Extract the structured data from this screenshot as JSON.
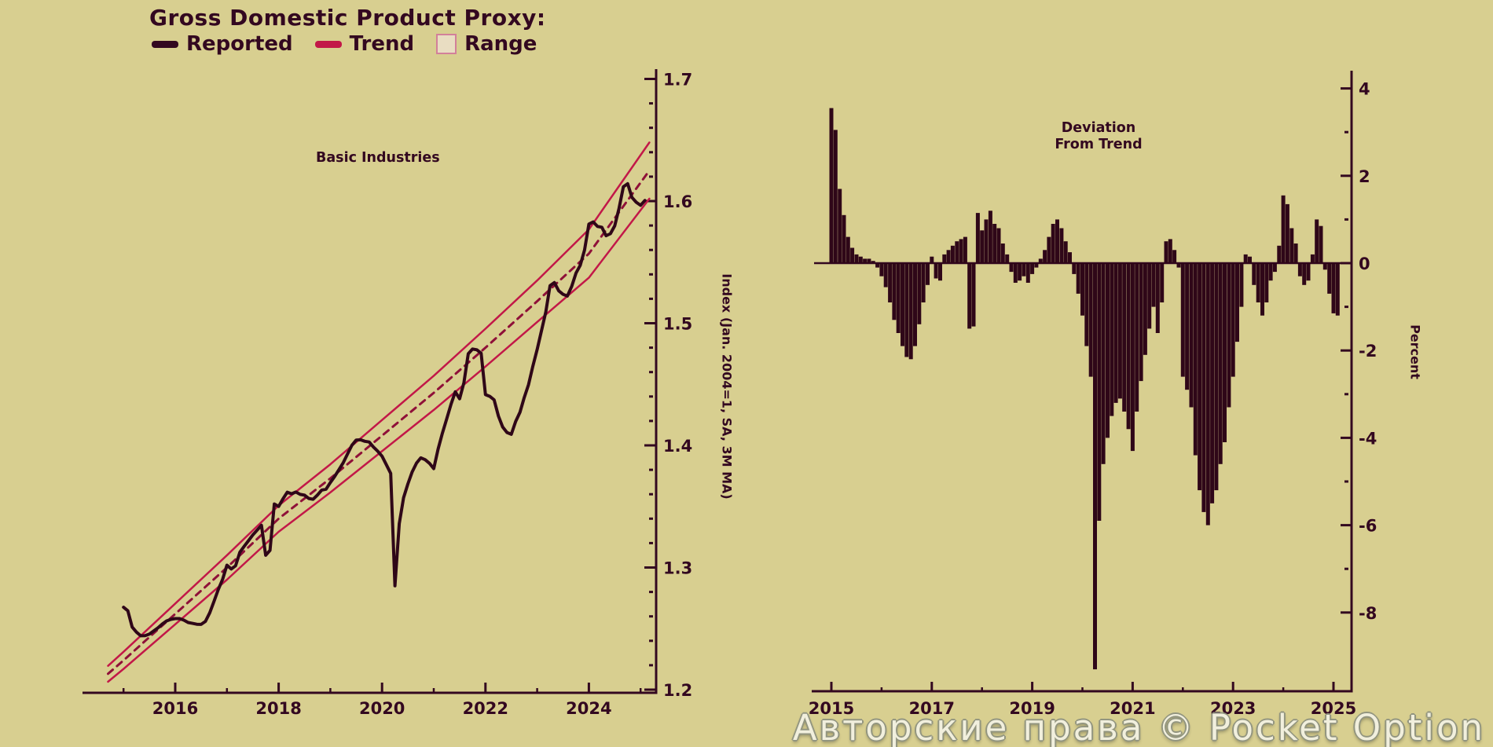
{
  "title": "Gross Domestic Product Proxy:",
  "legend": {
    "reported": "Reported",
    "trend": "Trend",
    "range": "Range"
  },
  "watermark": "Авторские права © Pocket Option",
  "colors": {
    "background": "#d8cf90",
    "ink": "#330820",
    "reported_line": "#2f0718",
    "trend_line": "#8f1038",
    "range_line": "#c21848",
    "range_fill": "#e9ddc2",
    "range_border": "#d2809a",
    "bar": "#2f0718",
    "watermark_fill": "#f3f1e2",
    "watermark_outline": "#8f927f"
  },
  "chart_data": [
    {
      "type": "line",
      "title": "Basic Industries",
      "ylabel": "Index (Jan. 2004=1, SA, 3M MA)",
      "ylim": [
        1.2,
        1.7
      ],
      "x_range": [
        2014.6,
        2025.35
      ],
      "grid": false,
      "y_ticks": [
        {
          "v": 1.7,
          "label": "1.7"
        },
        {
          "v": 1.6,
          "label": "1.6"
        },
        {
          "v": 1.5,
          "label": "1.5"
        },
        {
          "v": 1.4,
          "label": "1.4"
        },
        {
          "v": 1.3,
          "label": "1.3"
        },
        {
          "v": 1.2,
          "label": "1.2"
        }
      ],
      "x_ticks": [
        {
          "v": 2016,
          "label": "2016"
        },
        {
          "v": 2018,
          "label": "2018"
        },
        {
          "v": 2020,
          "label": "2020"
        },
        {
          "v": 2022,
          "label": "2022"
        },
        {
          "v": 2024,
          "label": "2024"
        }
      ],
      "x_minor_ticks": [
        2015,
        2017,
        2019,
        2021,
        2023,
        2025
      ],
      "series": [
        {
          "name": "Reported",
          "derivation": "trend_value * (1 + deviation_percent/100), monthly from Jan 2015 using right chart deviations"
        },
        {
          "name": "Trend",
          "style": "dashed",
          "anchors": [
            [
              2014.7,
              1.213
            ],
            [
              2015,
              1.224
            ],
            [
              2016,
              1.262
            ],
            [
              2017,
              1.3
            ],
            [
              2018,
              1.34
            ],
            [
              2019,
              1.373
            ],
            [
              2020,
              1.408
            ],
            [
              2021,
              1.443
            ],
            [
              2022,
              1.48
            ],
            [
              2023,
              1.518
            ],
            [
              2024,
              1.557
            ],
            [
              2025.17,
              1.625
            ]
          ]
        },
        {
          "name": "Range",
          "style": "band around trend",
          "halfwidth_anchors": [
            [
              2014.7,
              0.0065
            ],
            [
              2015,
              0.007
            ],
            [
              2017,
              0.01
            ],
            [
              2019,
              0.0115
            ],
            [
              2021,
              0.014
            ],
            [
              2023,
              0.017
            ],
            [
              2025.17,
              0.023
            ]
          ]
        }
      ]
    },
    {
      "type": "bar",
      "title": "Deviation From Trend",
      "title_lines": [
        "Deviation",
        "From Trend"
      ],
      "ylabel": "Percent",
      "ylim": [
        -9.75,
        4.4
      ],
      "x_range": [
        2014.6,
        2025.35
      ],
      "grid": false,
      "y_ticks": [
        {
          "v": 4,
          "label": "4"
        },
        {
          "v": 2,
          "label": "2"
        },
        {
          "v": 0,
          "label": "0"
        },
        {
          "v": -2,
          "label": "-2"
        },
        {
          "v": -4,
          "label": "-4"
        },
        {
          "v": -6,
          "label": "-6"
        },
        {
          "v": -8,
          "label": "-8"
        }
      ],
      "y_minor_ticks": [
        3,
        1,
        -1,
        -3,
        -5,
        -7
      ],
      "x_ticks": [
        {
          "v": 2015,
          "label": "2015"
        },
        {
          "v": 2017,
          "label": "2017"
        },
        {
          "v": 2019,
          "label": "2019"
        },
        {
          "v": 2021,
          "label": "2021"
        },
        {
          "v": 2023,
          "label": "2023"
        },
        {
          "v": 2025,
          "label": "2025"
        }
      ],
      "x_minor_ticks": [
        2016,
        2018,
        2020,
        2022,
        2024
      ],
      "start_year": 2015,
      "frequency": "monthly",
      "values": [
        3.55,
        3.05,
        1.7,
        1.1,
        0.6,
        0.35,
        0.2,
        0.15,
        0.1,
        0.1,
        0.05,
        -0.1,
        -0.3,
        -0.55,
        -0.9,
        -1.3,
        -1.6,
        -1.9,
        -2.15,
        -2.2,
        -1.9,
        -1.4,
        -0.9,
        -0.5,
        0.15,
        -0.35,
        -0.4,
        0.2,
        0.3,
        0.4,
        0.5,
        0.55,
        0.6,
        -1.5,
        -1.45,
        1.15,
        0.75,
        1.0,
        1.2,
        0.9,
        0.8,
        0.45,
        0.2,
        -0.2,
        -0.45,
        -0.4,
        -0.3,
        -0.45,
        -0.25,
        -0.1,
        0.1,
        0.3,
        0.6,
        0.9,
        1.0,
        0.8,
        0.5,
        0.25,
        -0.25,
        -0.7,
        -1.2,
        -1.9,
        -2.6,
        -9.3,
        -5.9,
        -4.6,
        -4.0,
        -3.5,
        -3.2,
        -3.1,
        -3.4,
        -3.8,
        -4.3,
        -3.4,
        -2.7,
        -2.1,
        -1.5,
        -1.0,
        -1.6,
        -0.9,
        0.5,
        0.55,
        0.3,
        -0.1,
        -2.6,
        -2.9,
        -3.3,
        -4.4,
        -5.2,
        -5.7,
        -6.0,
        -5.5,
        -5.2,
        -4.6,
        -4.1,
        -3.3,
        -2.6,
        -1.8,
        -1.0,
        0.2,
        0.15,
        -0.5,
        -0.9,
        -1.2,
        -0.9,
        -0.4,
        -0.2,
        0.4,
        1.55,
        1.35,
        0.8,
        0.45,
        -0.3,
        -0.5,
        -0.4,
        0.2,
        1.0,
        0.85,
        -0.15,
        -0.7,
        -1.15,
        -1.2
      ]
    }
  ]
}
